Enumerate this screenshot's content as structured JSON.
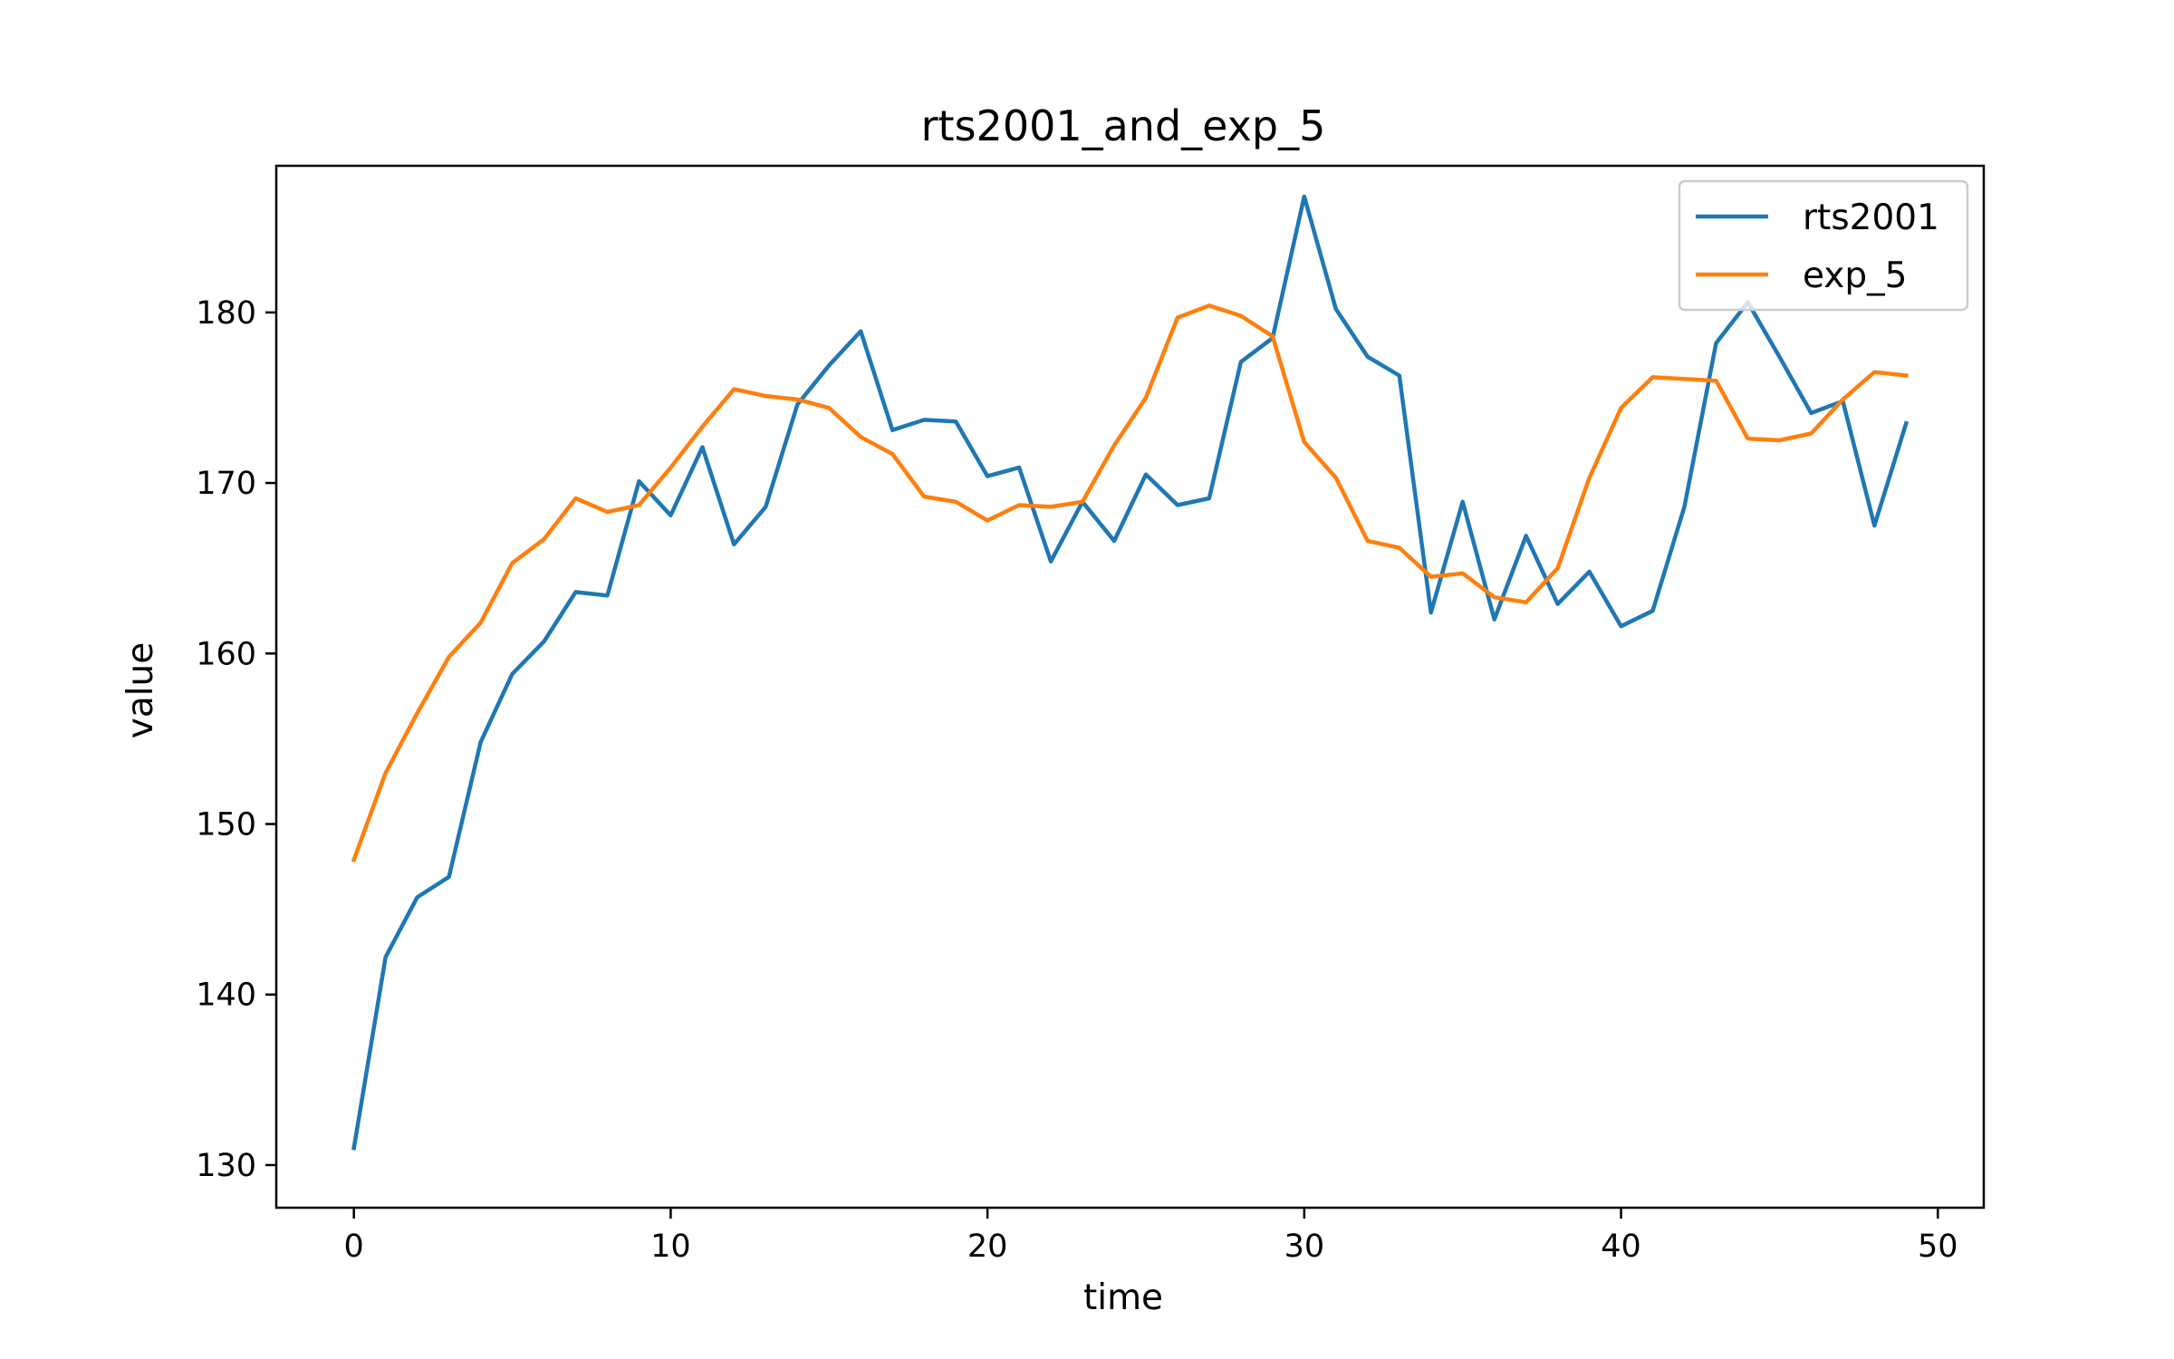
{
  "chart_data": {
    "type": "line",
    "title": "rts2001_and_exp_5",
    "xlabel": "time",
    "ylabel": "value",
    "xlim": [
      -2.45,
      51.45
    ],
    "ylim": [
      127.5,
      188.6
    ],
    "xticks": [
      0,
      10,
      20,
      30,
      40,
      50
    ],
    "yticks": [
      130,
      140,
      150,
      160,
      170,
      180
    ],
    "grid": false,
    "legend_position": "top-right",
    "x": [
      0,
      1,
      2,
      3,
      4,
      5,
      6,
      7,
      8,
      9,
      10,
      11,
      12,
      13,
      14,
      15,
      16,
      17,
      18,
      19,
      20,
      21,
      22,
      23,
      24,
      25,
      26,
      27,
      28,
      29,
      30,
      31,
      32,
      33,
      34,
      35,
      36,
      37,
      38,
      39,
      40,
      41,
      42,
      43,
      44,
      45,
      46,
      47,
      48,
      49
    ],
    "series": [
      {
        "name": "rts2001",
        "color": "#1f77b4",
        "values": [
          131.0,
          142.2,
          145.7,
          146.9,
          154.8,
          158.8,
          160.7,
          163.6,
          163.4,
          170.1,
          168.1,
          172.1,
          166.4,
          168.6,
          174.6,
          176.9,
          178.9,
          173.1,
          173.7,
          173.6,
          170.4,
          170.9,
          165.4,
          168.9,
          166.6,
          170.5,
          168.7,
          169.1,
          177.1,
          178.5,
          186.8,
          180.2,
          177.4,
          176.3,
          162.4,
          168.9,
          162.0,
          166.9,
          162.9,
          164.8,
          161.6,
          162.5,
          168.6,
          178.2,
          180.6,
          177.4,
          174.1,
          174.8,
          167.5,
          173.5
        ]
      },
      {
        "name": "exp_5",
        "color": "#ff7f0e",
        "values": [
          147.9,
          153.0,
          156.5,
          159.8,
          161.8,
          165.3,
          166.7,
          169.1,
          168.3,
          168.7,
          170.9,
          173.3,
          175.5,
          175.1,
          174.9,
          174.4,
          172.7,
          171.7,
          169.2,
          168.9,
          167.8,
          168.7,
          168.6,
          168.9,
          172.2,
          175.0,
          179.7,
          180.4,
          179.8,
          178.6,
          172.4,
          170.3,
          166.6,
          166.2,
          164.5,
          164.7,
          163.3,
          163.0,
          165.0,
          170.3,
          174.4,
          176.2,
          176.1,
          176.0,
          172.6,
          172.5,
          172.9,
          174.9,
          176.5,
          176.3
        ]
      }
    ]
  }
}
